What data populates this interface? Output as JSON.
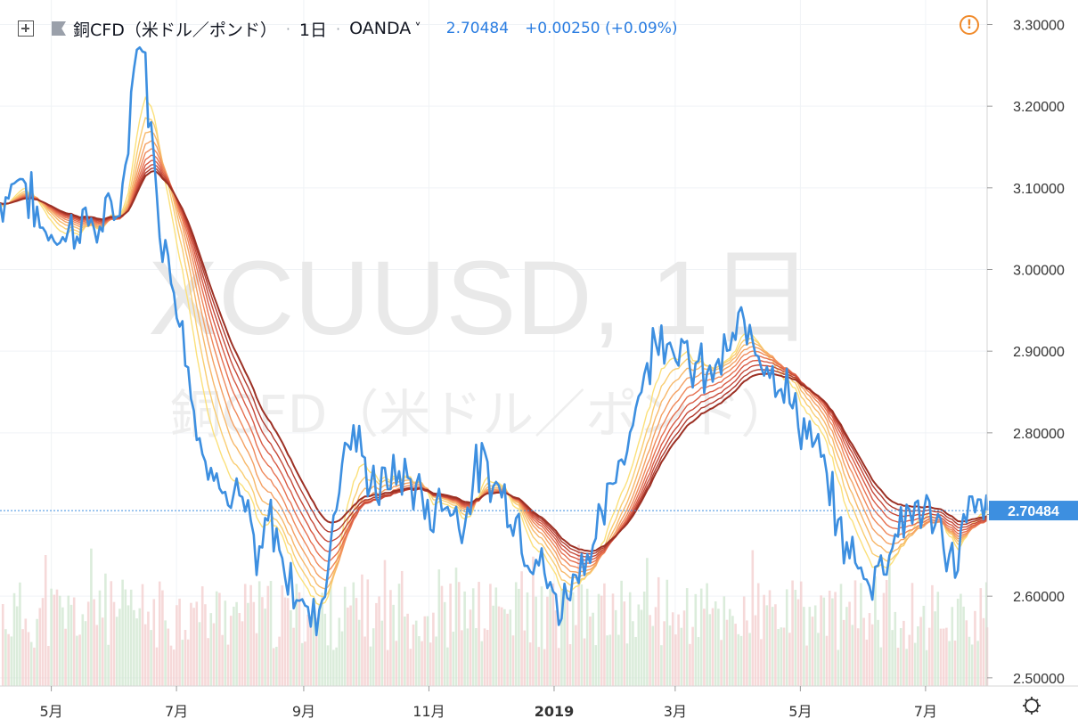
{
  "header": {
    "plus_icon": "square-plus-icon",
    "flag_icon": "flag-icon",
    "symbol_name": "銅CFD（米ドル／ポンド）",
    "interval": "1日",
    "broker": "OANDA",
    "broker_arrow": "˅",
    "last_price": "2.70484",
    "change": "+0.00250 (+0.09%)",
    "warning_icon": "alert-circle-icon",
    "warning_glyph": "!"
  },
  "watermark": {
    "line1": "XCUUSD, 1日",
    "line2": "銅CFD（米ドル／ポンド）"
  },
  "settings_icon": "gear-icon",
  "colors": {
    "price_line": "#3d8fe0",
    "current_price_label_bg": "#3d8fe0",
    "warning": "#f08a2a",
    "ribbon": [
      "#fbe07a",
      "#f9cd72",
      "#f7b86a",
      "#f4a062",
      "#ef885a",
      "#e67050",
      "#d85a44",
      "#c64838",
      "#b03a2e",
      "#9c3024"
    ],
    "volume_up": "#cfe6cf",
    "volume_down": "#f3cccc"
  },
  "chart_data": {
    "type": "line",
    "title": "XCUUSD, 1日",
    "ylim": [
      2.49,
      3.33
    ],
    "y_ticks": [
      "3.30000",
      "3.20000",
      "3.10000",
      "3.00000",
      "2.90000",
      "2.80000",
      "2.70000",
      "2.60000",
      "2.50000"
    ],
    "y_tick_values": [
      3.3,
      3.2,
      3.1,
      3.0,
      2.9,
      2.8,
      2.7,
      2.6,
      2.5
    ],
    "current_price_label": "2.70484",
    "current_price": 2.70484,
    "x_ticks": [
      "5月",
      "7月",
      "9月",
      "11月",
      "2019",
      "3月",
      "5月",
      "7月"
    ],
    "x_tick_dates": [
      "2018-05-01",
      "2018-07-01",
      "2018-09-01",
      "2018-11-01",
      "2019-01-01",
      "2019-03-01",
      "2019-05-01",
      "2019-07-01"
    ],
    "x_range": [
      "2018-04-06",
      "2019-07-31"
    ],
    "grid": true,
    "series": [
      {
        "type": "line",
        "x": [
          "2018-04-06",
          "2018-04-16",
          "2018-04-26",
          "2018-05-06",
          "2018-05-16",
          "2018-05-26",
          "2018-06-05",
          "2018-06-10",
          "2018-06-15",
          "2018-06-20",
          "2018-06-25",
          "2018-06-30",
          "2018-07-05",
          "2018-07-10",
          "2018-07-15",
          "2018-07-20",
          "2018-07-25",
          "2018-07-30",
          "2018-08-05",
          "2018-08-10",
          "2018-08-15",
          "2018-08-20",
          "2018-08-25",
          "2018-08-30",
          "2018-09-05",
          "2018-09-10",
          "2018-09-15",
          "2018-09-20",
          "2018-09-25",
          "2018-09-30",
          "2018-10-08",
          "2018-10-16",
          "2018-10-24",
          "2018-11-01",
          "2018-11-09",
          "2018-11-17",
          "2018-11-25",
          "2018-12-03",
          "2018-12-11",
          "2018-12-19",
          "2018-12-27",
          "2019-01-04",
          "2019-01-12",
          "2019-01-20",
          "2019-01-28",
          "2019-02-05",
          "2019-02-13",
          "2019-02-21",
          "2019-03-01",
          "2019-03-09",
          "2019-03-17",
          "2019-03-25",
          "2019-04-02",
          "2019-04-10",
          "2019-04-18",
          "2019-04-26",
          "2019-05-04",
          "2019-05-12",
          "2019-05-20",
          "2019-05-28",
          "2019-06-05",
          "2019-06-13",
          "2019-06-21",
          "2019-06-29",
          "2019-07-07",
          "2019-07-15",
          "2019-07-23",
          "2019-07-31"
        ],
        "values": [
          3.08,
          3.12,
          3.05,
          3.04,
          3.06,
          3.05,
          3.09,
          3.25,
          3.28,
          3.12,
          3.03,
          2.98,
          2.92,
          2.82,
          2.75,
          2.78,
          2.71,
          2.72,
          2.69,
          2.63,
          2.7,
          2.66,
          2.62,
          2.6,
          2.57,
          2.6,
          2.68,
          2.78,
          2.8,
          2.76,
          2.73,
          2.75,
          2.74,
          2.7,
          2.72,
          2.69,
          2.76,
          2.74,
          2.71,
          2.66,
          2.63,
          2.58,
          2.64,
          2.66,
          2.72,
          2.79,
          2.86,
          2.93,
          2.91,
          2.88,
          2.87,
          2.89,
          2.93,
          2.91,
          2.88,
          2.84,
          2.8,
          2.76,
          2.68,
          2.64,
          2.62,
          2.66,
          2.7,
          2.71,
          2.68,
          2.64,
          2.71,
          2.70484
        ]
      }
    ]
  }
}
